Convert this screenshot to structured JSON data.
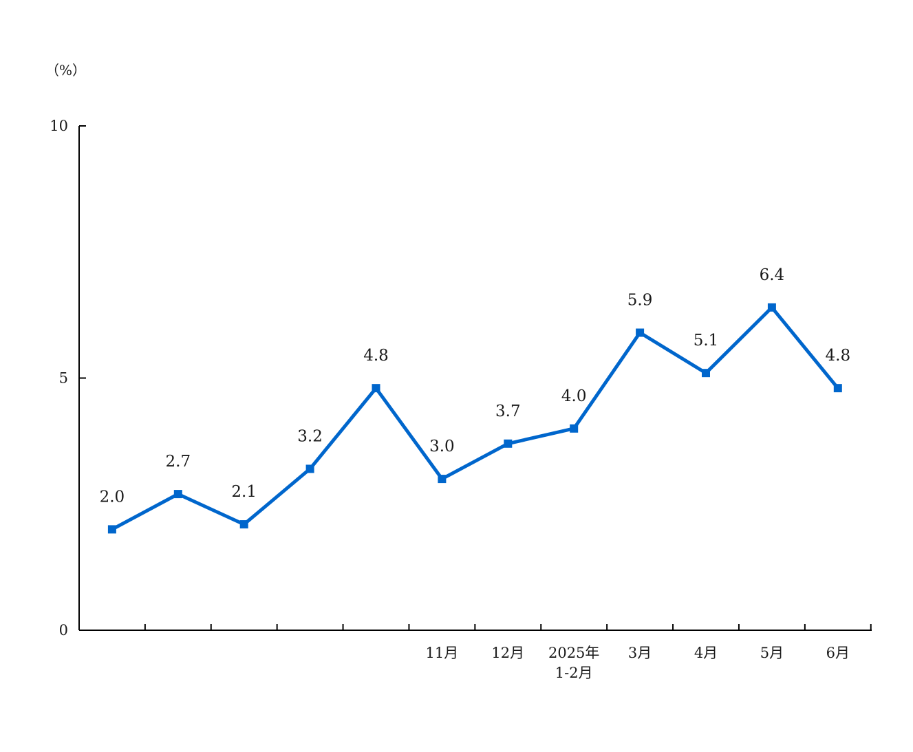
{
  "chart_data": {
    "type": "line",
    "title": "",
    "unit": "（%）",
    "x": [
      "",
      "",
      "",
      "",
      "",
      "",
      "11月",
      "12月",
      "2025年\n1-2月",
      "3月",
      "4月",
      "5月",
      "6月"
    ],
    "series": [
      {
        "values": [
          null,
          2.0,
          2.7,
          2.1,
          3.2,
          4.8,
          3.0,
          3.7,
          4.0,
          5.9,
          5.1,
          6.4,
          4.8
        ],
        "labels": [
          "",
          "2.0",
          "2.7",
          "2.1",
          "3.2",
          "4.8",
          "3.0",
          "3.7",
          "4.0",
          "5.9",
          "5.1",
          "6.4",
          "4.8"
        ]
      }
    ],
    "ylim": [
      0,
      10
    ],
    "yticks": [
      0,
      5,
      10
    ],
    "line_color": "#0066cc",
    "marker": "square",
    "grid": false,
    "legend": "none"
  }
}
